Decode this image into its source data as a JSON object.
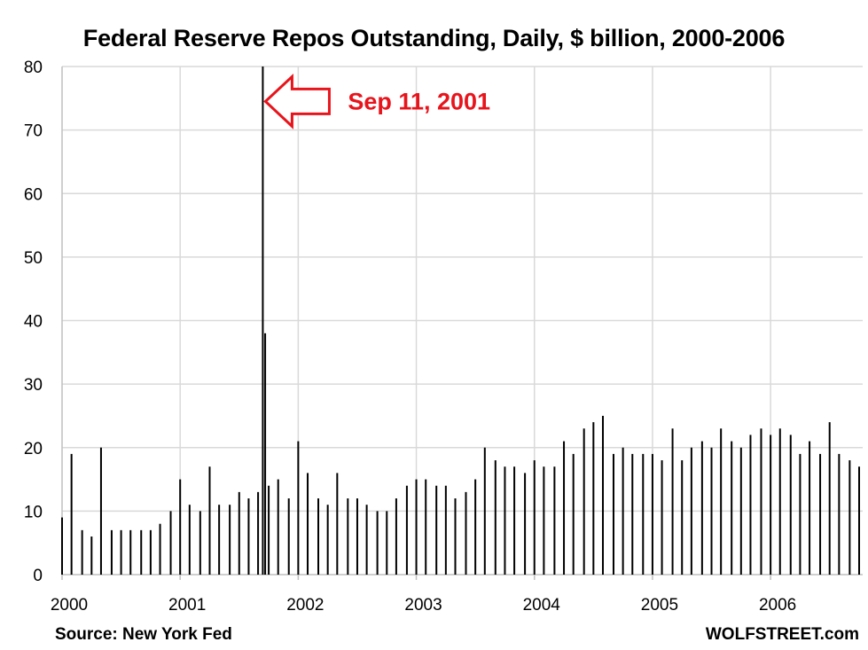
{
  "chart_data": {
    "type": "bar",
    "title": "Federal Reserve Repos Outstanding, Daily, $ billion, 2000-2006",
    "xlabel": "",
    "ylabel": "",
    "ylim": [
      0,
      80
    ],
    "xlim": [
      2000.0,
      2006.78
    ],
    "y_ticks": [
      "0",
      "10",
      "20",
      "30",
      "40",
      "50",
      "60",
      "70",
      "80"
    ],
    "x_ticks": [
      "2000",
      "2001",
      "2002",
      "2003",
      "2004",
      "2005",
      "2006"
    ],
    "grid": true,
    "legend": "none",
    "series": [
      {
        "x": [
          2000.0,
          2000.08,
          2000.17,
          2000.25,
          2000.33,
          2000.42,
          2000.5,
          2000.58,
          2000.67,
          2000.75,
          2000.83,
          2000.92,
          2001.0,
          2001.08,
          2001.17,
          2001.25,
          2001.33,
          2001.42,
          2001.5,
          2001.58,
          2001.66,
          2001.7,
          2001.72,
          2001.75,
          2001.83,
          2001.92,
          2002.0,
          2002.08,
          2002.17,
          2002.25,
          2002.33,
          2002.42,
          2002.5,
          2002.58,
          2002.67,
          2002.75,
          2002.83,
          2002.92,
          2003.0,
          2003.08,
          2003.17,
          2003.25,
          2003.33,
          2003.42,
          2003.5,
          2003.58,
          2003.67,
          2003.75,
          2003.83,
          2003.92,
          2004.0,
          2004.08,
          2004.17,
          2004.25,
          2004.33,
          2004.42,
          2004.5,
          2004.58,
          2004.67,
          2004.75,
          2004.83,
          2004.92,
          2005.0,
          2005.08,
          2005.17,
          2005.25,
          2005.33,
          2005.42,
          2005.5,
          2005.58,
          2005.67,
          2005.75,
          2005.83,
          2005.92,
          2006.0,
          2006.08,
          2006.17,
          2006.25,
          2006.33,
          2006.42,
          2006.5,
          2006.58,
          2006.67,
          2006.75
        ],
        "y": [
          9,
          19,
          7,
          6,
          20,
          7,
          7,
          7,
          7,
          7,
          8,
          10,
          15,
          11,
          10,
          17,
          11,
          11,
          13,
          12,
          13,
          81,
          38,
          14,
          15,
          12,
          21,
          16,
          12,
          11,
          16,
          12,
          12,
          11,
          10,
          10,
          12,
          14,
          15,
          15,
          14,
          14,
          12,
          13,
          15,
          20,
          18,
          17,
          17,
          16,
          18,
          17,
          17,
          21,
          19,
          23,
          24,
          25,
          19,
          20,
          19,
          19,
          19,
          18,
          23,
          18,
          20,
          21,
          20,
          23,
          21,
          20,
          22,
          23,
          22,
          23,
          22,
          19,
          21,
          19,
          24,
          19,
          18,
          17
        ]
      }
    ],
    "annotations": [
      {
        "text": "Sep 11, 2001",
        "x": 2001.7,
        "y": 74.5,
        "color": "#e8141c"
      }
    ]
  },
  "footer": {
    "source": "Source: New York Fed",
    "brand": "WOLFSTREET.com"
  }
}
